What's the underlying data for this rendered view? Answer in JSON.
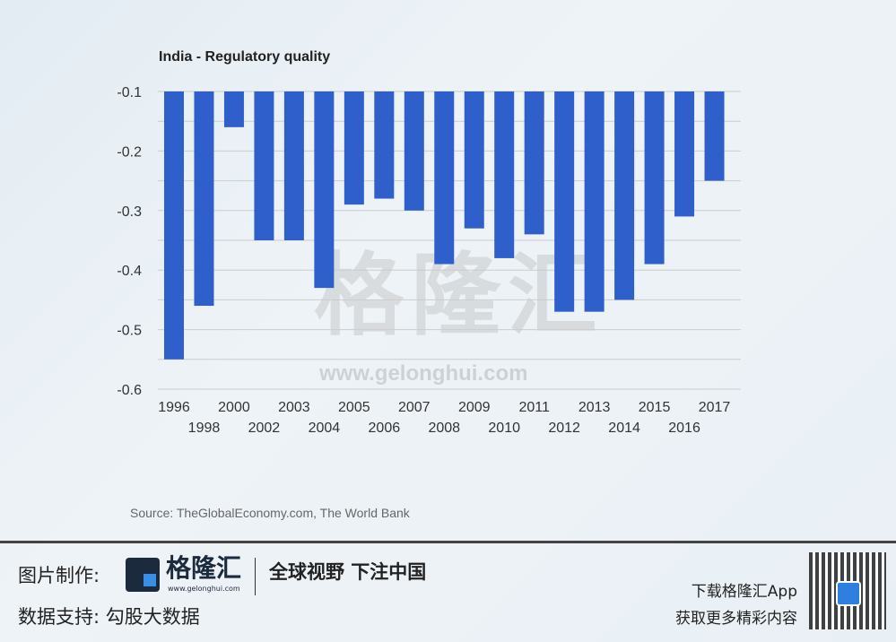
{
  "chart_data": {
    "type": "bar",
    "title": "India - Regulatory quality",
    "categories": [
      "1996",
      "1998",
      "2000",
      "2002",
      "2003",
      "2004",
      "2005",
      "2006",
      "2007",
      "2008",
      "2009",
      "2010",
      "2011",
      "2012",
      "2013",
      "2014",
      "2015",
      "2016",
      "2017"
    ],
    "values": [
      -0.55,
      -0.46,
      -0.16,
      -0.35,
      -0.35,
      -0.43,
      -0.29,
      -0.28,
      -0.3,
      -0.39,
      -0.33,
      -0.38,
      -0.34,
      -0.47,
      -0.47,
      -0.45,
      -0.39,
      -0.31,
      -0.25
    ],
    "ylim": [
      -0.6,
      -0.1
    ],
    "yticks": [
      "-0.1",
      "-0.2",
      "-0.3",
      "-0.4",
      "-0.5",
      "-0.6"
    ],
    "grid": true,
    "bar_color": "#2f5fcb",
    "source": "Source: TheGlobalEconomy.com, The World Bank"
  },
  "watermark": {
    "text": "格隆汇",
    "url": "www.gelonghui.com"
  },
  "footer": {
    "made_by": "图片制作:",
    "logo_text": "格隆汇",
    "logo_url": "www.gelonghui.com",
    "slogan": "全球视野 下注中国",
    "data_support": "数据支持:  勾股大数据",
    "app_line1": "下载格隆汇App",
    "app_line2": "获取更多精彩内容"
  }
}
